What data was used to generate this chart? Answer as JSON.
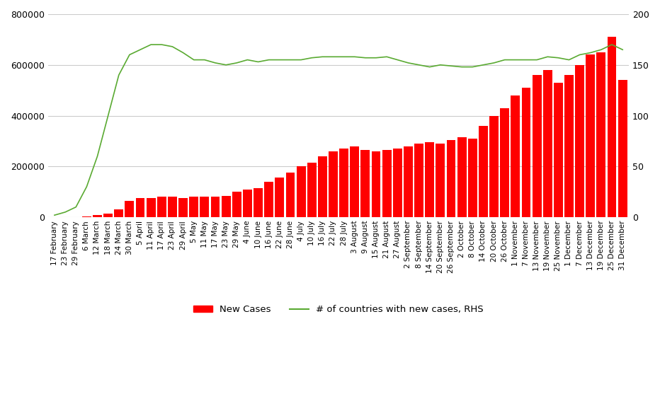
{
  "title": "",
  "bar_color": "#ff0000",
  "line_color": "#5aaa32",
  "background_color": "#ffffff",
  "grid_color": "#cccccc",
  "ylim_left": [
    0,
    800000
  ],
  "ylim_right": [
    0,
    200
  ],
  "yticks_left": [
    0,
    200000,
    400000,
    600000,
    800000
  ],
  "yticks_right": [
    0,
    50,
    100,
    150,
    200
  ],
  "legend_labels": [
    "New Cases",
    "# of countries with new cases, RHS"
  ],
  "x_labels": [
    "17 February",
    "23 February",
    "29 February",
    "6 March",
    "12 March",
    "18 March",
    "24 March",
    "30 March",
    "5 April",
    "11 April",
    "17 April",
    "23 April",
    "29 April",
    "5 May",
    "11 May",
    "17 May",
    "23 May",
    "29 May",
    "4 June",
    "10 June",
    "16 June",
    "22 June",
    "28 June",
    "4 July",
    "10 July",
    "16 July",
    "22 July",
    "28 July",
    "3 August",
    "9 August",
    "15 August",
    "21 August",
    "27 August",
    "2 September",
    "8 September",
    "14 September",
    "20 September",
    "26 September",
    "2 October",
    "8 October",
    "14 October",
    "20 October",
    "26 October",
    "1 November",
    "7 November",
    "13 November",
    "19 November",
    "25 November",
    "1 December",
    "7 December",
    "13 December",
    "19 December",
    "25 December",
    "31 December"
  ],
  "new_cases": [
    500,
    500,
    1500,
    3500,
    8000,
    15000,
    30000,
    65000,
    75000,
    75000,
    80000,
    80000,
    75000,
    80000,
    82000,
    80000,
    85000,
    100000,
    110000,
    115000,
    140000,
    155000,
    175000,
    200000,
    215000,
    240000,
    260000,
    270000,
    280000,
    265000,
    260000,
    265000,
    270000,
    280000,
    290000,
    295000,
    290000,
    305000,
    315000,
    310000,
    360000,
    400000,
    430000,
    480000,
    510000,
    560000,
    580000,
    530000,
    560000,
    600000,
    640000,
    650000,
    710000,
    540000
  ],
  "countries_with_cases": [
    2,
    5,
    10,
    30,
    60,
    100,
    140,
    160,
    165,
    170,
    170,
    168,
    162,
    155,
    155,
    152,
    150,
    152,
    155,
    153,
    155,
    155,
    155,
    155,
    157,
    158,
    158,
    158,
    158,
    157,
    157,
    158,
    155,
    152,
    150,
    148,
    150,
    149,
    148,
    148,
    150,
    152,
    155,
    155,
    155,
    155,
    158,
    157,
    155,
    160,
    162,
    165,
    170,
    165
  ]
}
